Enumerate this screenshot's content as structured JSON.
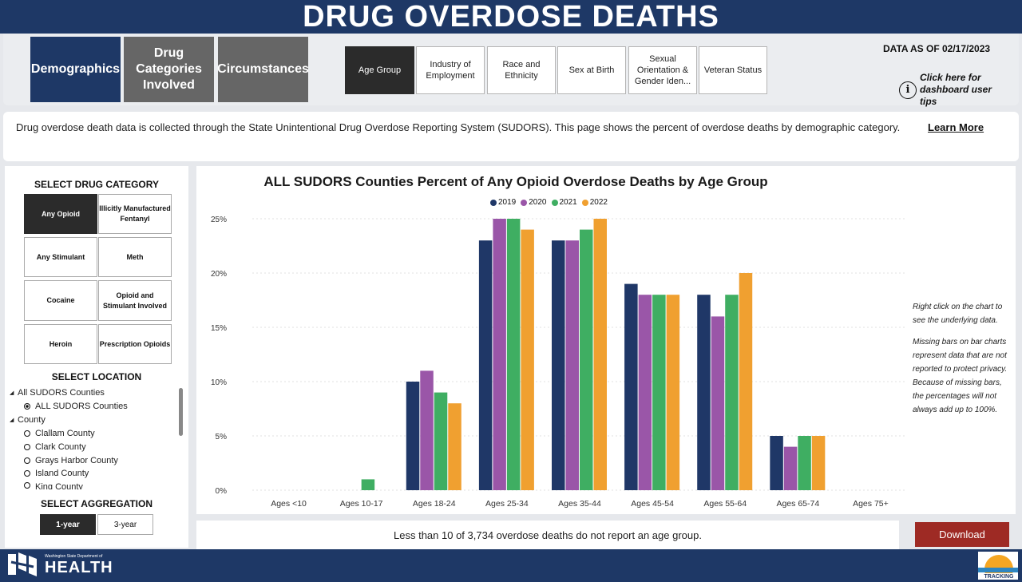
{
  "header": {
    "title": "DRUG OVERDOSE DEATHS"
  },
  "nav": {
    "sections": [
      {
        "label": "Demographics"
      },
      {
        "label": "Drug Categories Involved"
      },
      {
        "label": "Circumstances"
      }
    ],
    "subtabs": [
      {
        "label": "Age Group"
      },
      {
        "label": "Industry of Employment"
      },
      {
        "label": "Race and Ethnicity"
      },
      {
        "label": "Sex at Birth"
      },
      {
        "label": "Sexual Orientation & Gender Iden..."
      },
      {
        "label": "Veteran Status"
      }
    ],
    "data_as_of": "DATA AS OF 02/17/2023",
    "tips_label": "Click here for dashboard user tips"
  },
  "description": {
    "text": "Drug overdose death data is collected through the State Unintentional Drug Overdose Reporting System (SUDORS). This page shows the percent of overdose deaths by demographic category.",
    "learn_more": "Learn More"
  },
  "filters": {
    "drug_heading": "SELECT DRUG CATEGORY",
    "drug_buttons": [
      {
        "label": "Any Opioid"
      },
      {
        "label": "Illicitly Manufactured Fentanyl"
      },
      {
        "label": "Any Stimulant"
      },
      {
        "label": "Meth"
      },
      {
        "label": "Cocaine"
      },
      {
        "label": "Opioid and Stimulant Involved"
      },
      {
        "label": "Heroin"
      },
      {
        "label": "Prescription Opioids"
      }
    ],
    "location_heading": "SELECT LOCATION",
    "locations": [
      {
        "label": "All SUDORS Counties",
        "kind": "group"
      },
      {
        "label": "ALL SUDORS Counties",
        "kind": "option-selected"
      },
      {
        "label": "County",
        "kind": "group"
      },
      {
        "label": "Clallam County",
        "kind": "option"
      },
      {
        "label": "Clark County",
        "kind": "option"
      },
      {
        "label": "Grays Harbor County",
        "kind": "option"
      },
      {
        "label": "Island County",
        "kind": "option"
      },
      {
        "label": "King County",
        "kind": "option"
      }
    ],
    "aggregation_heading": "SELECT AGGREGATION",
    "aggregation_options": [
      {
        "label": "1-year"
      },
      {
        "label": "3-year"
      }
    ]
  },
  "chart_data": {
    "type": "bar",
    "title": "ALL SUDORS Counties Percent of Any Opioid Overdose Deaths by Age Group",
    "categories": [
      "Ages <10",
      "Ages 10-17",
      "Ages 18-24",
      "Ages 25-34",
      "Ages 35-44",
      "Ages 45-54",
      "Ages 55-64",
      "Ages 65-74",
      "Ages 75+"
    ],
    "series": [
      {
        "name": "2019",
        "color": "#1f3767",
        "values": [
          null,
          null,
          10,
          23,
          23,
          19,
          18,
          5,
          null
        ]
      },
      {
        "name": "2020",
        "color": "#9a56a8",
        "values": [
          null,
          null,
          11,
          25,
          23,
          18,
          16,
          4,
          null
        ]
      },
      {
        "name": "2021",
        "color": "#3fae62",
        "values": [
          null,
          1,
          9,
          25,
          24,
          18,
          18,
          5,
          null
        ]
      },
      {
        "name": "2022",
        "color": "#f0a030",
        "values": [
          null,
          null,
          8,
          24,
          25,
          18,
          20,
          5,
          null
        ]
      }
    ],
    "yticks": [
      "0%",
      "5%",
      "10%",
      "15%",
      "20%",
      "25%"
    ],
    "ylim": [
      0,
      25
    ],
    "legend_position": "top-center",
    "grid": true
  },
  "side_note": {
    "p1": "Right click on the chart to see the underlying data.",
    "p2": "Missing bars on bar charts represent data that are not reported to protect privacy. Because of missing bars, the percentages will not always add up to 100%."
  },
  "footnote": "Less than 10 of 3,734 overdose deaths do not report an age group.",
  "download_label": "Download",
  "footer": {
    "agency_small": "Washington State Department of",
    "agency_big": "HEALTH",
    "tracking_label": "TRACKING"
  }
}
